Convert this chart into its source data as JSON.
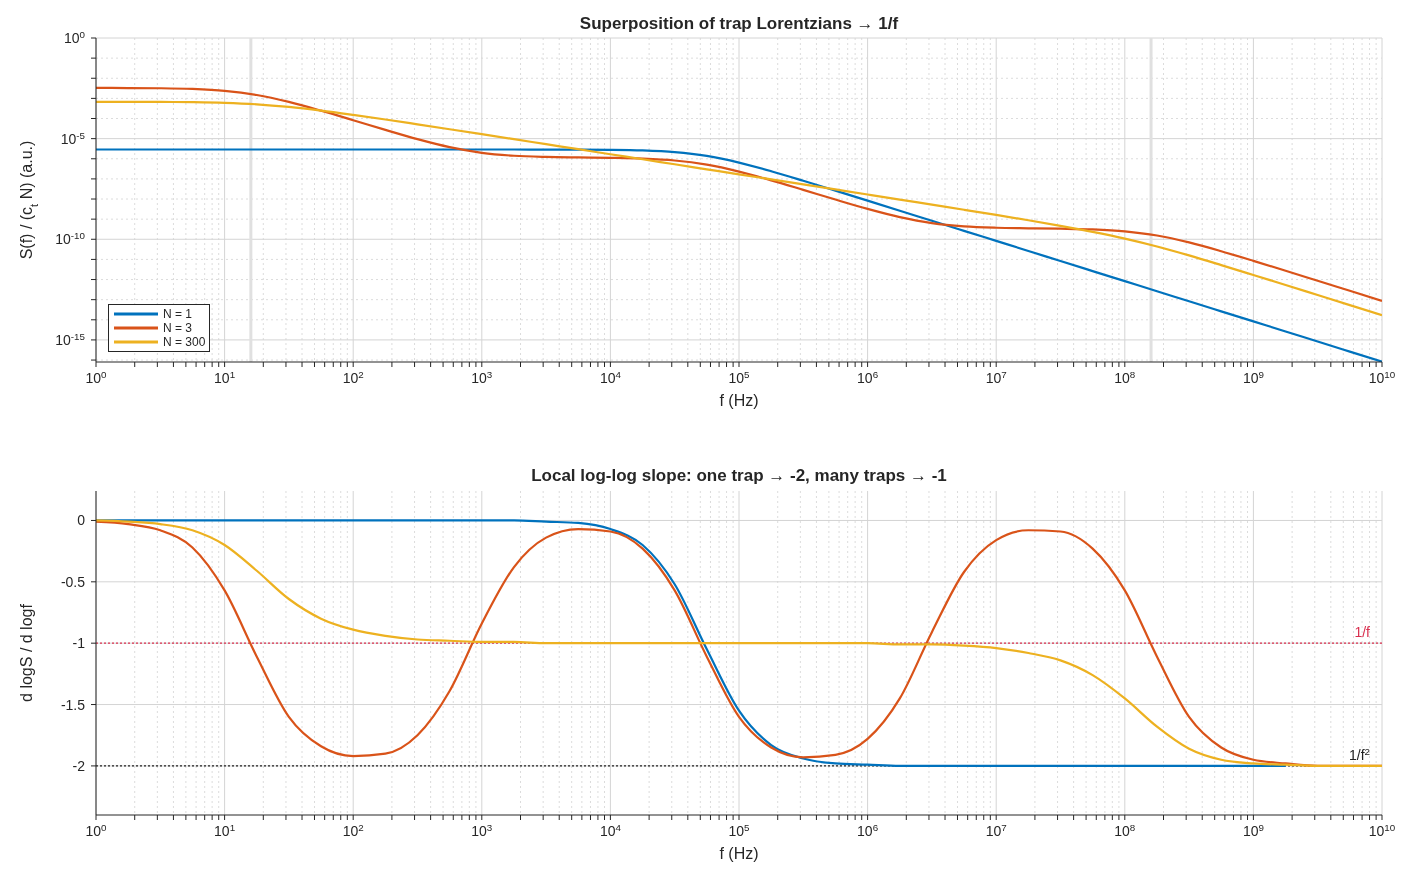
{
  "chart_data": [
    {
      "type": "line",
      "title": "Superposition of trap Lorentzians → 1/f",
      "xlabel": "f  (Hz)",
      "ylabel": "S(f)  /  (c$_{t}$ N)     (a.u.)",
      "log": "xy",
      "grid": true,
      "legend": "bottom left",
      "xlim": [
        1,
        10000000000.0
      ],
      "ylim": [
        8e-17,
        1
      ],
      "xticks": [
        {
          "value": 1,
          "label": "10$^{0}$"
        },
        {
          "value": 2,
          "label": null
        },
        {
          "value": 3,
          "label": null
        },
        {
          "value": 4,
          "label": null
        },
        {
          "value": 5,
          "label": null
        },
        {
          "value": 6,
          "label": null
        },
        {
          "value": 7,
          "label": null
        },
        {
          "value": 8,
          "label": null
        },
        {
          "value": 9,
          "label": null
        },
        {
          "value": 10,
          "label": "10$^{1}$"
        },
        {
          "value": 20,
          "label": null
        },
        {
          "value": 30,
          "label": null
        },
        {
          "value": 40,
          "label": null
        },
        {
          "value": 50,
          "label": null
        },
        {
          "value": 60,
          "label": null
        },
        {
          "value": 70,
          "label": null
        },
        {
          "value": 80,
          "label": null
        },
        {
          "value": 90,
          "label": null
        },
        {
          "value": 100,
          "label": "10$^{2}$"
        },
        {
          "value": 200,
          "label": null
        },
        {
          "value": 300,
          "label": null
        },
        {
          "value": 400,
          "label": null
        },
        {
          "value": 500,
          "label": null
        },
        {
          "value": 600,
          "label": null
        },
        {
          "value": 700,
          "label": null
        },
        {
          "value": 800,
          "label": null
        },
        {
          "value": 900,
          "label": null
        },
        {
          "value": 1000,
          "label": "10$^{3}$"
        },
        {
          "value": 2000,
          "label": null
        },
        {
          "value": 3000,
          "label": null
        },
        {
          "value": 4000,
          "label": null
        },
        {
          "value": 5000,
          "label": null
        },
        {
          "value": 6000,
          "label": null
        },
        {
          "value": 7000,
          "label": null
        },
        {
          "value": 8000,
          "label": null
        },
        {
          "value": 9000,
          "label": null
        },
        {
          "value": 10000.0,
          "label": "10$^{4}$"
        },
        {
          "value": 20000.0,
          "label": null
        },
        {
          "value": 30000.0,
          "label": null
        },
        {
          "value": 40000.0,
          "label": null
        },
        {
          "value": 50000.0,
          "label": null
        },
        {
          "value": 60000.0,
          "label": null
        },
        {
          "value": 70000.0,
          "label": null
        },
        {
          "value": 80000.0,
          "label": null
        },
        {
          "value": 90000.0,
          "label": null
        },
        {
          "value": 100000.0,
          "label": "10$^{5}$"
        },
        {
          "value": 200000.0,
          "label": null
        },
        {
          "value": 300000.0,
          "label": null
        },
        {
          "value": 400000.0,
          "label": null
        },
        {
          "value": 500000.0,
          "label": null
        },
        {
          "value": 600000.0,
          "label": null
        },
        {
          "value": 700000.0,
          "label": null
        },
        {
          "value": 800000.0,
          "label": null
        },
        {
          "value": 900000.0,
          "label": null
        },
        {
          "value": 1000000.0,
          "label": "10$^{6}$"
        },
        {
          "value": 2000000.0,
          "label": null
        },
        {
          "value": 3000000.0,
          "label": null
        },
        {
          "value": 4000000.0,
          "label": null
        },
        {
          "value": 5000000.0,
          "label": null
        },
        {
          "value": 6000000.0,
          "label": null
        },
        {
          "value": 7000000.0,
          "label": null
        },
        {
          "value": 8000000.0,
          "label": null
        },
        {
          "value": 9000000.0,
          "label": null
        },
        {
          "value": 10000000.0,
          "label": "10$^{7}$"
        },
        {
          "value": 20000000.0,
          "label": null
        },
        {
          "value": 30000000.0,
          "label": null
        },
        {
          "value": 40000000.0,
          "label": null
        },
        {
          "value": 50000000.0,
          "label": null
        },
        {
          "value": 60000000.0,
          "label": null
        },
        {
          "value": 70000000.0,
          "label": null
        },
        {
          "value": 80000000.0,
          "label": null
        },
        {
          "value": 90000000.0,
          "label": null
        },
        {
          "value": 100000000.0,
          "label": "10$^{8}$"
        },
        {
          "value": 200000000.0,
          "label": null
        },
        {
          "value": 300000000.0,
          "label": null
        },
        {
          "value": 400000000.0,
          "label": null
        },
        {
          "value": 500000000.0,
          "label": null
        },
        {
          "value": 600000000.0,
          "label": null
        },
        {
          "value": 700000000.0,
          "label": null
        },
        {
          "value": 800000000.0,
          "label": null
        },
        {
          "value": 900000000.0,
          "label": null
        },
        {
          "value": 1000000000.0,
          "label": "10$^{9}$"
        },
        {
          "value": 2000000000.0,
          "label": null
        },
        {
          "value": 3000000000.0,
          "label": null
        },
        {
          "value": 4000000000.0,
          "label": null
        },
        {
          "value": 5000000000.0,
          "label": null
        },
        {
          "value": 6000000000.0,
          "label": null
        },
        {
          "value": 7000000000.0,
          "label": null
        },
        {
          "value": 8000000000.0,
          "label": null
        },
        {
          "value": 9000000000.0,
          "label": null
        },
        {
          "value": 10000000000.0,
          "label": "10$^{10}$"
        }
      ],
      "yticks": [
        {
          "value": 1,
          "label": "10$^{0}$"
        },
        {
          "value": 0.1,
          "label": null
        },
        {
          "value": 0.01,
          "label": null
        },
        {
          "value": 0.001,
          "label": null
        },
        {
          "value": 0.0001,
          "label": null
        },
        {
          "value": 1e-05,
          "label": "10$^{-5}$"
        },
        {
          "value": 1e-06,
          "label": null
        },
        {
          "value": 1e-07,
          "label": null
        },
        {
          "value": 1e-08,
          "label": null
        },
        {
          "value": 1e-09,
          "label": null
        },
        {
          "value": 1e-10,
          "label": "10$^{-10}$"
        },
        {
          "value": 1e-11,
          "label": null
        },
        {
          "value": 1e-12,
          "label": null
        },
        {
          "value": 1e-13,
          "label": null
        },
        {
          "value": 1e-14,
          "label": null
        },
        {
          "value": 1e-15,
          "label": "10$^{-15}$"
        },
        {
          "value": 1e-16,
          "label": null
        }
      ],
      "x": [
        1,
        1.78,
        3.16,
        5.62,
        10,
        17.8,
        31.6,
        56.2,
        100,
        178,
        316,
        562,
        1000,
        1780,
        3160,
        5620,
        10000.0,
        17800.0,
        31600.0,
        56200.0,
        100000.0,
        178000.0,
        316000.0,
        562000.0,
        1000000.0,
        1780000.0,
        3160000.0,
        5620000.0,
        10000000.0,
        17800000.0,
        31600000.0,
        56200000.0,
        100000000.0,
        178000000.0,
        316000000.0,
        562000000.0,
        1000000000.0,
        1780000000.0,
        3160000000.0,
        5620000000.0,
        10000000000.0
      ],
      "series": [
        {
          "name": "N = 1",
          "color": "#0072bd",
          "values": [
            2.88e-06,
            2.88e-06,
            2.88e-06,
            2.88e-06,
            2.88e-06,
            2.88e-06,
            2.88e-06,
            2.88e-06,
            2.88e-06,
            2.88e-06,
            2.88e-06,
            2.88e-06,
            2.88e-06,
            2.88e-06,
            2.87e-06,
            2.85e-06,
            2.79e-06,
            2.6e-06,
            2.14e-06,
            1.38e-06,
            6.46e-07,
            2.41e-07,
            8.09e-08,
            2.61e-08,
            8.3e-09,
            2.63e-09,
            8.32e-10,
            2.63e-10,
            8.32e-11,
            2.63e-11,
            8.32e-12,
            2.63e-12,
            8.32e-13,
            2.63e-13,
            8.32e-14,
            2.63e-14,
            8.32e-15,
            2.63e-15,
            8.32e-16,
            2.63e-16,
            8.32e-17
          ]
        },
        {
          "name": "N = 3",
          "color": "#d95319",
          "values": [
            0.0033,
            0.00327,
            0.00319,
            0.00294,
            0.00237,
            0.00147,
            0.000666,
            0.000245,
            8.23e-05,
            2.72e-05,
            9.45e-06,
            3.78e-06,
            1.98e-06,
            1.41e-06,
            1.23e-06,
            1.16e-06,
            1.11e-06,
            1.02e-06,
            8.23e-07,
            5.09e-07,
            2.31e-07,
            8.48e-08,
            2.85e-08,
            9.4e-09,
            3.23e-09,
            1.26e-09,
            6.35e-10,
            4.38e-10,
            3.74e-10,
            3.52e-10,
            3.36e-10,
            3.09e-10,
            2.48e-10,
            1.54e-10,
            6.97e-11,
            2.55e-11,
            8.5e-12,
            2.73e-12,
            8.69e-13,
            2.75e-13,
            8.7e-14
          ]
        },
        {
          "name": "N = 300",
          "color": "#edb120",
          "values": [
            0.000675,
            0.000673,
            0.000667,
            0.000649,
            0.000603,
            0.000508,
            0.000375,
            0.000247,
            0.000151,
            8.93e-05,
            5.15e-05,
            2.94e-05,
            1.67e-05,
            9.41e-06,
            5.31e-06,
            2.99e-06,
            1.68e-06,
            9.46e-07,
            5.32e-07,
            2.99e-07,
            1.68e-07,
            9.46e-08,
            5.32e-08,
            2.99e-08,
            1.68e-08,
            9.4e-09,
            5.25e-09,
            2.93e-09,
            1.62e-09,
            8.79e-10,
            4.66e-10,
            2.34e-10,
            1.08e-10,
            4.39e-11,
            1.58e-11,
            5.23e-12,
            1.68e-12,
            5.36e-13,
            1.7e-13,
            5.37e-14,
            1.7e-14
          ]
        }
      ],
      "ref_lines": [
        {
          "axis": "x",
          "value": 16,
          "color": "#e0e0e0",
          "line_style": "solid"
        },
        {
          "axis": "x",
          "value": 160000000.0,
          "color": "#e0e0e0",
          "line_style": "solid"
        }
      ]
    },
    {
      "type": "line",
      "title": "Local log-log slope: one trap → -2,  many traps → -1",
      "xlabel": "f  (Hz)",
      "ylabel": "d logS / d logf",
      "log": "x",
      "grid": true,
      "xlim": [
        1,
        10000000000.0
      ],
      "ylim": [
        -2.4,
        0.24
      ],
      "xticks": [
        {
          "value": 1,
          "label": "10$^{0}$"
        },
        {
          "value": 2,
          "label": null
        },
        {
          "value": 3,
          "label": null
        },
        {
          "value": 4,
          "label": null
        },
        {
          "value": 5,
          "label": null
        },
        {
          "value": 6,
          "label": null
        },
        {
          "value": 7,
          "label": null
        },
        {
          "value": 8,
          "label": null
        },
        {
          "value": 9,
          "label": null
        },
        {
          "value": 10,
          "label": "10$^{1}$"
        },
        {
          "value": 20,
          "label": null
        },
        {
          "value": 30,
          "label": null
        },
        {
          "value": 40,
          "label": null
        },
        {
          "value": 50,
          "label": null
        },
        {
          "value": 60,
          "label": null
        },
        {
          "value": 70,
          "label": null
        },
        {
          "value": 80,
          "label": null
        },
        {
          "value": 90,
          "label": null
        },
        {
          "value": 100,
          "label": "10$^{2}$"
        },
        {
          "value": 200,
          "label": null
        },
        {
          "value": 300,
          "label": null
        },
        {
          "value": 400,
          "label": null
        },
        {
          "value": 500,
          "label": null
        },
        {
          "value": 600,
          "label": null
        },
        {
          "value": 700,
          "label": null
        },
        {
          "value": 800,
          "label": null
        },
        {
          "value": 900,
          "label": null
        },
        {
          "value": 1000,
          "label": "10$^{3}$"
        },
        {
          "value": 2000,
          "label": null
        },
        {
          "value": 3000,
          "label": null
        },
        {
          "value": 4000,
          "label": null
        },
        {
          "value": 5000,
          "label": null
        },
        {
          "value": 6000,
          "label": null
        },
        {
          "value": 7000,
          "label": null
        },
        {
          "value": 8000,
          "label": null
        },
        {
          "value": 9000,
          "label": null
        },
        {
          "value": 10000.0,
          "label": "10$^{4}$"
        },
        {
          "value": 20000.0,
          "label": null
        },
        {
          "value": 30000.0,
          "label": null
        },
        {
          "value": 40000.0,
          "label": null
        },
        {
          "value": 50000.0,
          "label": null
        },
        {
          "value": 60000.0,
          "label": null
        },
        {
          "value": 70000.0,
          "label": null
        },
        {
          "value": 80000.0,
          "label": null
        },
        {
          "value": 90000.0,
          "label": null
        },
        {
          "value": 100000.0,
          "label": "10$^{5}$"
        },
        {
          "value": 200000.0,
          "label": null
        },
        {
          "value": 300000.0,
          "label": null
        },
        {
          "value": 400000.0,
          "label": null
        },
        {
          "value": 500000.0,
          "label": null
        },
        {
          "value": 600000.0,
          "label": null
        },
        {
          "value": 700000.0,
          "label": null
        },
        {
          "value": 800000.0,
          "label": null
        },
        {
          "value": 900000.0,
          "label": null
        },
        {
          "value": 1000000.0,
          "label": "10$^{6}$"
        },
        {
          "value": 2000000.0,
          "label": null
        },
        {
          "value": 3000000.0,
          "label": null
        },
        {
          "value": 4000000.0,
          "label": null
        },
        {
          "value": 5000000.0,
          "label": null
        },
        {
          "value": 6000000.0,
          "label": null
        },
        {
          "value": 7000000.0,
          "label": null
        },
        {
          "value": 8000000.0,
          "label": null
        },
        {
          "value": 9000000.0,
          "label": null
        },
        {
          "value": 10000000.0,
          "label": "10$^{7}$"
        },
        {
          "value": 20000000.0,
          "label": null
        },
        {
          "value": 30000000.0,
          "label": null
        },
        {
          "value": 40000000.0,
          "label": null
        },
        {
          "value": 50000000.0,
          "label": null
        },
        {
          "value": 60000000.0,
          "label": null
        },
        {
          "value": 70000000.0,
          "label": null
        },
        {
          "value": 80000000.0,
          "label": null
        },
        {
          "value": 90000000.0,
          "label": null
        },
        {
          "value": 100000000.0,
          "label": "10$^{8}$"
        },
        {
          "value": 200000000.0,
          "label": null
        },
        {
          "value": 300000000.0,
          "label": null
        },
        {
          "value": 400000000.0,
          "label": null
        },
        {
          "value": 500000000.0,
          "label": null
        },
        {
          "value": 600000000.0,
          "label": null
        },
        {
          "value": 700000000.0,
          "label": null
        },
        {
          "value": 800000000.0,
          "label": null
        },
        {
          "value": 900000000.0,
          "label": null
        },
        {
          "value": 1000000000.0,
          "label": "10$^{9}$"
        },
        {
          "value": 2000000000.0,
          "label": null
        },
        {
          "value": 3000000000.0,
          "label": null
        },
        {
          "value": 4000000000.0,
          "label": null
        },
        {
          "value": 5000000000.0,
          "label": null
        },
        {
          "value": 6000000000.0,
          "label": null
        },
        {
          "value": 7000000000.0,
          "label": null
        },
        {
          "value": 8000000000.0,
          "label": null
        },
        {
          "value": 9000000000.0,
          "label": null
        },
        {
          "value": 10000000000.0,
          "label": "10$^{10}$"
        }
      ],
      "yticks": [
        0,
        -0.5,
        -1,
        -1.5,
        -2
      ],
      "x": [
        1,
        1.78,
        3.16,
        5.62,
        10,
        17.8,
        31.6,
        56.2,
        100,
        178,
        316,
        562,
        1000,
        1780,
        3160,
        5620,
        10000.0,
        17800.0,
        31600.0,
        56200.0,
        100000.0,
        178000.0,
        316000.0,
        562000.0,
        1000000.0,
        1780000.0,
        3160000.0,
        5620000.0,
        10000000.0,
        17800000.0,
        31600000.0,
        56200000.0,
        100000000.0,
        178000000.0,
        316000000.0,
        562000000.0,
        1000000000.0,
        1780000000.0,
        3160000000.0,
        5620000000.0,
        10000000000.0
      ],
      "series": [
        {
          "color": "#0072bd",
          "values": [
            0,
            0,
            0,
            0,
            0,
            0,
            0,
            0,
            0,
            0,
            0,
            0,
            0,
            0,
            -0.01,
            -0.02,
            -0.07,
            -0.2,
            -0.52,
            -1.05,
            -1.55,
            -1.83,
            -1.94,
            -1.98,
            -1.99,
            -2,
            -2,
            -2,
            -2,
            -2,
            -2,
            -2,
            -2,
            -2,
            -2,
            -2,
            -2,
            -2,
            null,
            null,
            null
          ]
        },
        {
          "color": "#d95319",
          "values": [
            -0.01,
            -0.03,
            -0.08,
            -0.22,
            -0.57,
            -1.11,
            -1.6,
            -1.84,
            -1.92,
            -1.9,
            -1.75,
            -1.39,
            -0.84,
            -0.38,
            -0.14,
            -0.07,
            -0.09,
            -0.23,
            -0.57,
            -1.11,
            -1.6,
            -1.85,
            -1.93,
            -1.91,
            -1.78,
            -1.45,
            -0.91,
            -0.42,
            -0.16,
            -0.08,
            -0.09,
            -0.23,
            -0.57,
            -1.11,
            -1.6,
            -1.85,
            -1.95,
            -1.98,
            -2,
            -2,
            -2
          ]
        },
        {
          "color": "#edb120",
          "values": [
            0,
            -0.01,
            -0.03,
            -0.08,
            -0.2,
            -0.41,
            -0.64,
            -0.8,
            -0.89,
            -0.94,
            -0.97,
            -0.98,
            -0.99,
            -0.99,
            -1,
            -1,
            -1,
            -1,
            -1,
            -1,
            -1,
            -1,
            -1,
            -1,
            -1,
            -1.01,
            -1.01,
            -1.02,
            -1.04,
            -1.08,
            -1.14,
            -1.26,
            -1.45,
            -1.68,
            -1.86,
            -1.95,
            -1.98,
            -1.99,
            -2,
            -2,
            -2
          ]
        }
      ],
      "ref_lines": [
        {
          "axis": "y",
          "value": -1,
          "label": "1/f",
          "color": "#d9304f",
          "line_style": "dotted"
        },
        {
          "axis": "y",
          "value": -2,
          "label": "1/f$^{2}$",
          "color": "#222222",
          "line_style": "dotted"
        }
      ]
    }
  ]
}
